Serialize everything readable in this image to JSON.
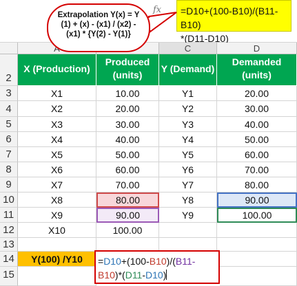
{
  "formula_bar": {
    "fx_label": "fx",
    "formula": "=D10+(100-B10)/(B11-B10)\n*(D11-D10)"
  },
  "callout": {
    "text": "Extrapolation Y(x) = Y\n(1) + (x) - (x1) / (x2) -\n(x1) * {Y(2) - Y(1)}"
  },
  "columns": [
    "A",
    "B",
    "C",
    "D"
  ],
  "rows": [
    "2",
    "3",
    "4",
    "5",
    "6",
    "7",
    "8",
    "9",
    "10",
    "11",
    "12",
    "13",
    "14",
    "15"
  ],
  "headers": {
    "a": "X (Production)",
    "b": "Produced\n(units)",
    "c": "Y (Demand)",
    "d": "Demanded\n(units)"
  },
  "table": [
    {
      "a": "X1",
      "b": "10.00",
      "c": "Y1",
      "d": "20.00"
    },
    {
      "a": "X2",
      "b": "20.00",
      "c": "Y2",
      "d": "30.00"
    },
    {
      "a": "X3",
      "b": "30.00",
      "c": "Y3",
      "d": "40.00"
    },
    {
      "a": "X4",
      "b": "40.00",
      "c": "Y4",
      "d": "50.00"
    },
    {
      "a": "X5",
      "b": "50.00",
      "c": "Y5",
      "d": "60.00"
    },
    {
      "a": "X6",
      "b": "60.00",
      "c": "Y6",
      "d": "70.00"
    },
    {
      "a": "X7",
      "b": "70.00",
      "c": "Y7",
      "d": "80.00"
    },
    {
      "a": "X8",
      "b": "80.00",
      "c": "Y8",
      "d": "90.00"
    },
    {
      "a": "X9",
      "b": "90.00",
      "c": "Y9",
      "d": "100.00"
    },
    {
      "a": "X10",
      "b": "100.00",
      "c": "",
      "d": ""
    }
  ],
  "result_label": "Y(100) /Y10",
  "edit_formula": {
    "p1": "=",
    "p2": "D10",
    "p3": "+(100-",
    "p4": "B10",
    "p5": ")/(",
    "p6": "B11-",
    "p7": "B10",
    "p8": ")*(",
    "p9": "D11",
    "p10": "-",
    "p11": "D10",
    "p12": ")"
  },
  "colors": {
    "header_green": "#00a651",
    "label_yellow": "#ffc000",
    "formula_yellow": "#ffff00",
    "callout_red": "#d40000"
  }
}
